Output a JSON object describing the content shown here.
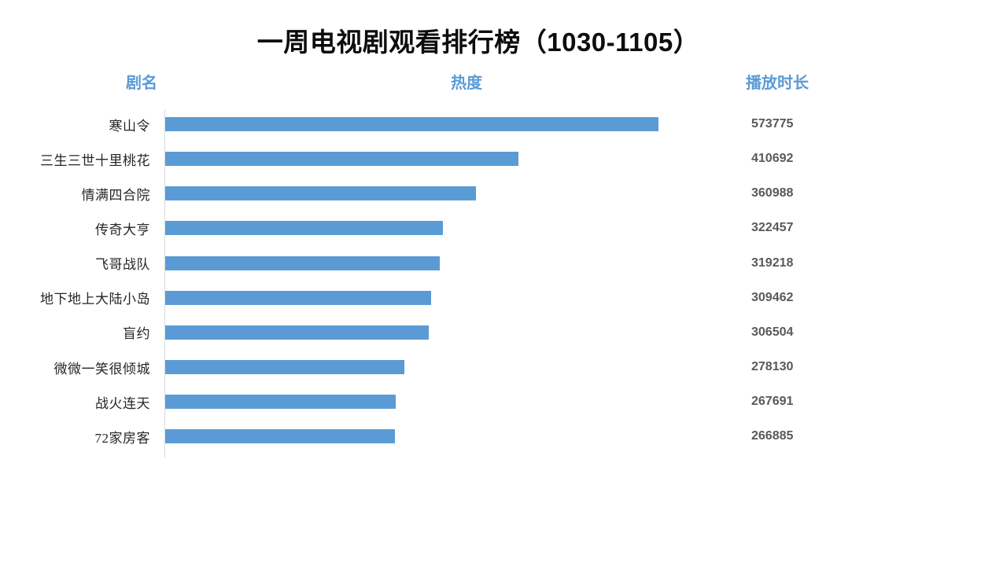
{
  "title": "一周电视剧观看排行榜（1030-1105）",
  "headers": {
    "name": "剧名",
    "heat": "热度",
    "duration": "播放时长"
  },
  "colors": {
    "bar": "#5B9BD5",
    "header_text": "#5B9BD5",
    "title_text": "#0d0d0d",
    "value_text": "#595959",
    "label_text": "#262626",
    "axis_line": "#D9D9D9",
    "background": "#FFFFFF"
  },
  "chart_data": {
    "type": "bar",
    "orientation": "horizontal",
    "title": "一周电视剧观看排行榜（1030-1105）",
    "categories": [
      "寒山令",
      "三生三世十里桃花",
      "情满四合院",
      "传奇大亨",
      "飞哥战队",
      "地下地上大陆小岛",
      "盲约",
      "微微一笑很倾城",
      "战火连天",
      "72家房客"
    ],
    "values": [
      573775,
      410692,
      360988,
      322457,
      319218,
      309462,
      306504,
      278130,
      267691,
      266885
    ],
    "value_labels": [
      "573775",
      "410692",
      "360988",
      "322457",
      "319218",
      "309462",
      "306504",
      "278130",
      "267691",
      "266885"
    ],
    "xlim": [
      0,
      600000
    ],
    "grid": false,
    "legend": false,
    "category_axis_label": "剧名",
    "value_axis_label": "热度",
    "value_column_label": "播放时长",
    "bar_color": "#5B9BD5",
    "sorted": "descending"
  }
}
